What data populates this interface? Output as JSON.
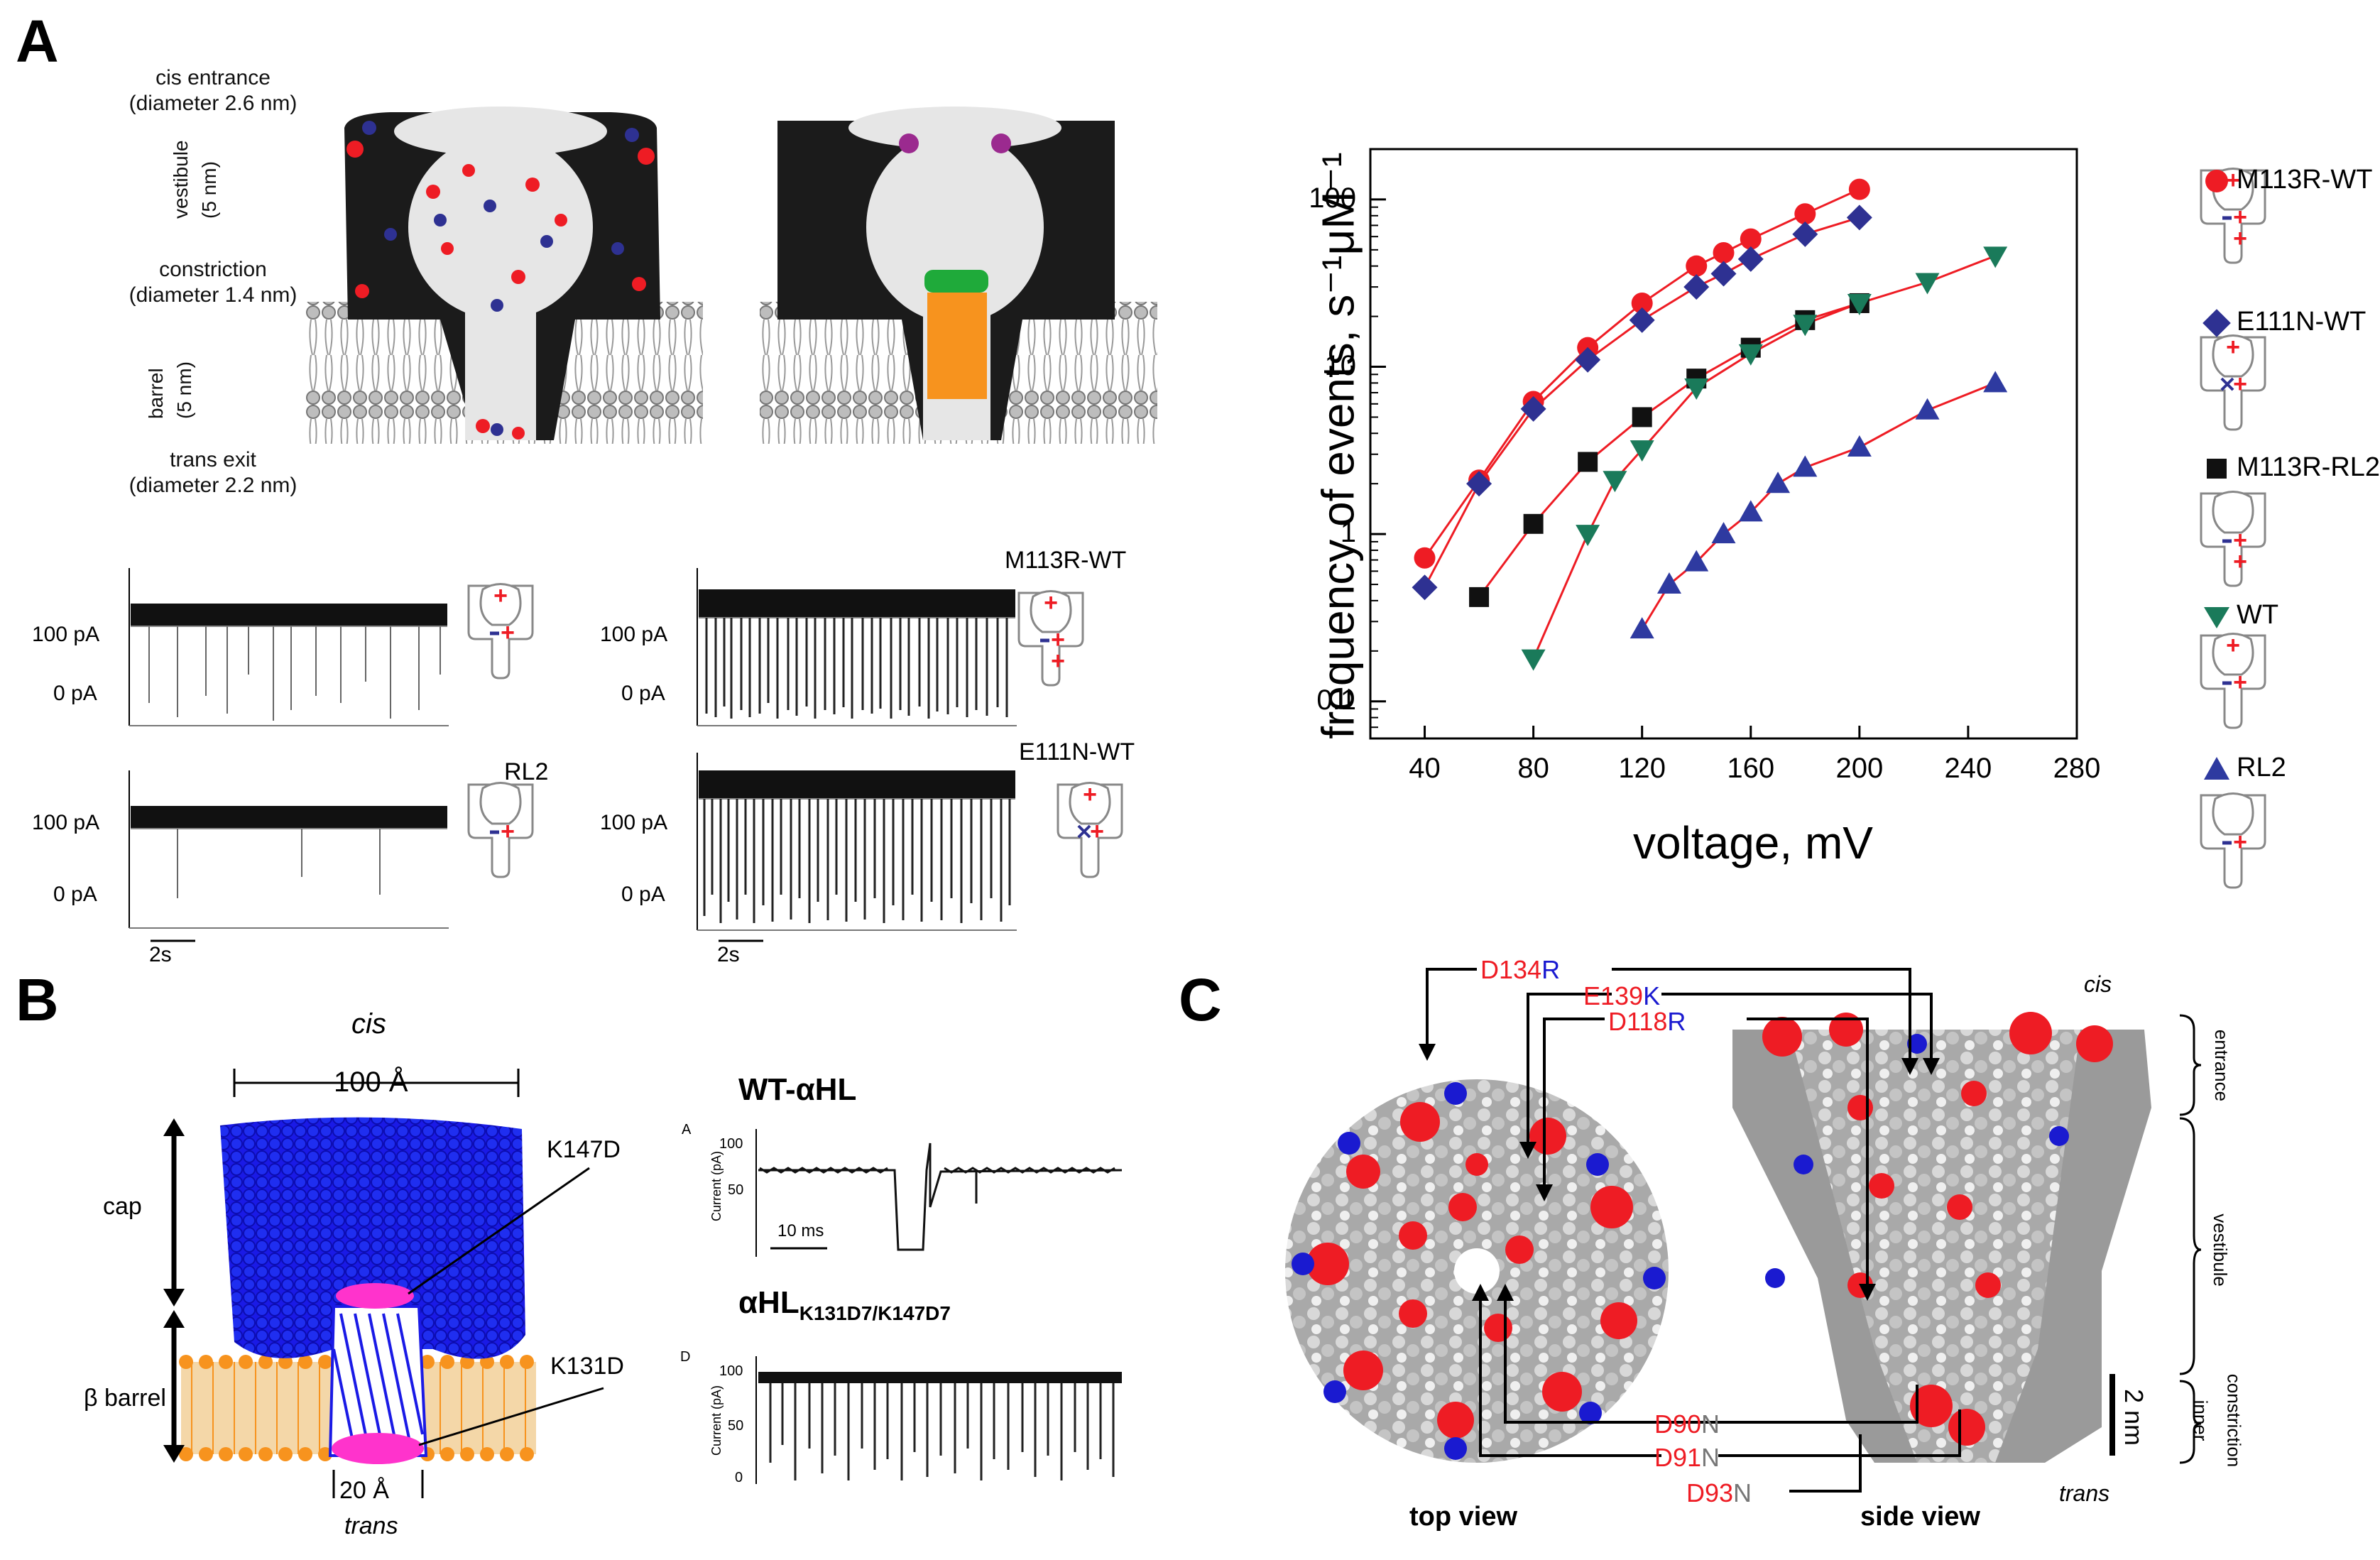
{
  "panels": {
    "a": "A",
    "b": "B",
    "c": "C"
  },
  "panelA": {
    "pore_labels": [
      "cis entrance",
      "(diameter 2.6 nm)",
      "vestibule",
      "(5 nm)",
      "constriction",
      "(diameter 1.4 nm)",
      "barrel",
      "(5 nm)",
      "trans exit",
      "(diameter 2.2 nm)"
    ],
    "traces": {
      "y100": "100 pA",
      "y0": "0 pA",
      "scale": "2s",
      "labels": {
        "m113r": "M113R-WT",
        "rl2": "RL2",
        "e111n": "E111N-WT"
      }
    }
  },
  "chart_data": {
    "type": "scatter",
    "title": "",
    "xlabel": "voltage, mV",
    "ylabel": "frequency of events, s⁻¹μM⁻¹",
    "yscale": "log",
    "xlim": [
      20,
      280
    ],
    "ylim": [
      0.06,
      200
    ],
    "x_ticks": [
      40,
      80,
      120,
      160,
      200,
      240,
      280
    ],
    "y_ticks": [
      {
        "v": 0.1,
        "label": "0.1"
      },
      {
        "v": 1,
        "label": "1"
      },
      {
        "v": 10,
        "label": "10"
      },
      {
        "v": 100,
        "label": "100"
      }
    ],
    "series": [
      {
        "name": "M113R-WT",
        "marker": "circle",
        "color": "#ee1c24",
        "x": [
          40,
          60,
          80,
          100,
          120,
          140,
          150,
          160,
          180,
          200
        ],
        "y": [
          0.72,
          2.1,
          6.2,
          13,
          24,
          40,
          48,
          58,
          82,
          115
        ]
      },
      {
        "name": "E111N-WT",
        "marker": "diamond",
        "color": "#2e3192",
        "x": [
          40,
          60,
          80,
          100,
          120,
          140,
          150,
          160,
          180,
          200
        ],
        "y": [
          0.48,
          2.0,
          5.6,
          11,
          19,
          30,
          36,
          44,
          62,
          78
        ]
      },
      {
        "name": "M113R-RL2",
        "marker": "square",
        "color": "#111111",
        "x": [
          60,
          80,
          100,
          120,
          140,
          160,
          180,
          200
        ],
        "y": [
          0.42,
          1.15,
          2.7,
          5.0,
          8.5,
          13,
          19,
          24
        ]
      },
      {
        "name": "WT",
        "marker": "triangle-down",
        "color": "#1a7a5a",
        "x": [
          80,
          100,
          110,
          120,
          140,
          160,
          180,
          200,
          225,
          250
        ],
        "y": [
          0.18,
          1.0,
          2.1,
          3.2,
          7.5,
          12,
          18,
          24,
          32,
          46
        ]
      },
      {
        "name": "RL2",
        "marker": "triangle-up",
        "color": "#2e3aa0",
        "x": [
          120,
          130,
          140,
          150,
          160,
          170,
          180,
          200,
          225,
          250
        ],
        "y": [
          0.27,
          0.5,
          0.68,
          1.0,
          1.35,
          2.0,
          2.5,
          3.3,
          5.5,
          8.0
        ]
      }
    ]
  },
  "panelB": {
    "cis": "cis",
    "trans": "trans",
    "width_top": "100 Å",
    "width_bottom": "20 Å",
    "cap": "cap",
    "barrel": "β barrel",
    "k147d": "K147D",
    "k131d": "K131D",
    "wt_title": "WT-αHL",
    "mut_title_main": "αHL",
    "mut_title_sub": "K131D7/K147D7",
    "trace_letter_a": "A",
    "trace_letter_d": "D",
    "y_axis_label": "Current (pA)",
    "ticks": [
      "100",
      "50",
      "0"
    ],
    "scale": "10 ms"
  },
  "panelC": {
    "mutations_top": [
      {
        "orig": "D134",
        "new": "R"
      },
      {
        "orig": "E139",
        "new": "K"
      },
      {
        "orig": "D118",
        "new": "R"
      }
    ],
    "mutations_bottom": [
      {
        "orig": "D90",
        "new": "N"
      },
      {
        "orig": "D91",
        "new": "N"
      },
      {
        "orig": "D93",
        "new": "N"
      }
    ],
    "cis": "cis",
    "trans": "trans",
    "top_view": "top view",
    "side_view": "side view",
    "scale": "2 nm",
    "regions": [
      "entrance",
      "vestibule",
      "inner",
      "constriction"
    ]
  },
  "colors": {
    "red": "#ee1c24",
    "blue": "#2e3192",
    "orange": "#f7931e",
    "magenta": "#ff33cc",
    "green": "#1faa3a"
  }
}
